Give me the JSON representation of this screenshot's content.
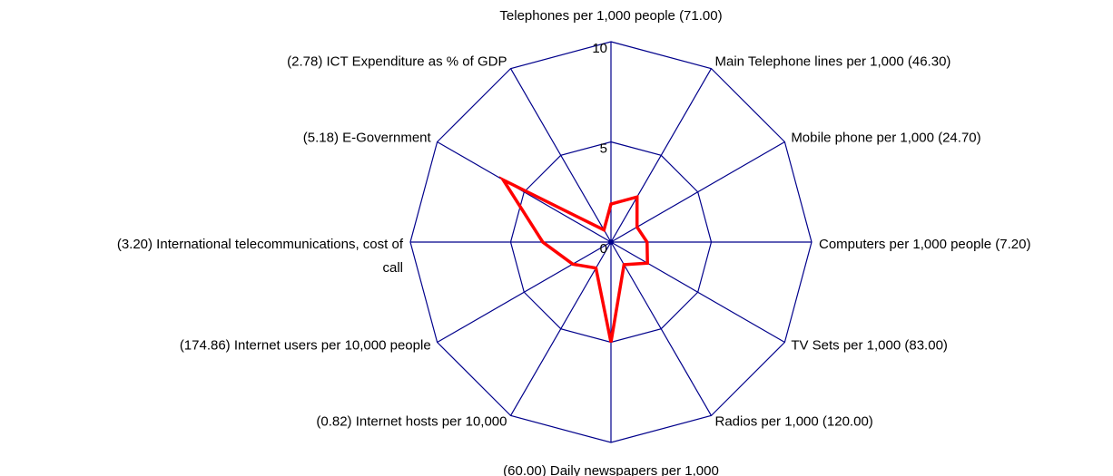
{
  "chart_data": {
    "type": "radar",
    "categories": [
      "Telephones per 1,000 people (71.00)",
      "Main Telephone lines per 1,000 (46.30)",
      "Mobile phone per 1,000 (24.70)",
      "Computers per 1,000 people (7.20)",
      "TV Sets per 1,000 (83.00)",
      "Radios per 1,000 (120.00)",
      "(60.00) Daily newspapers per 1,000",
      "(0.82) Internet hosts per 10,000",
      "(174.86) Internet users per 10,000 people",
      "(3.20) International telecommunications, cost of call",
      "(5.18) E-Government",
      "(2.78) ICT Expenditure as % of GDP"
    ],
    "series": [
      {
        "color": "#ff0000",
        "values": [
          1.9,
          2.6,
          1.5,
          1.8,
          2.1,
          1.3,
          5.0,
          1.5,
          2.2,
          3.4,
          6.2,
          0.7
        ]
      }
    ],
    "ylim": [
      0,
      10
    ],
    "yticks": [
      0,
      5,
      10
    ],
    "grid_color": "#00008b"
  }
}
